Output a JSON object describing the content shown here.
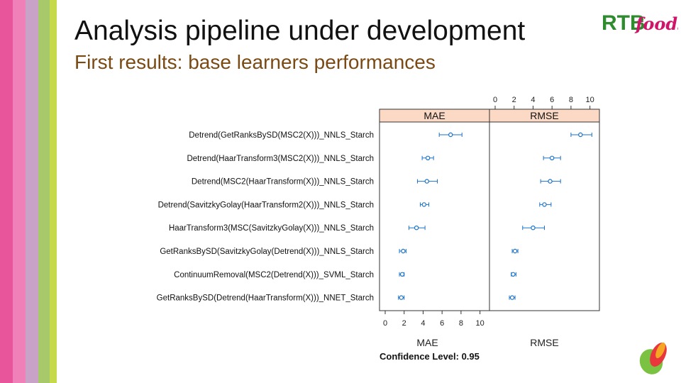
{
  "slide": {
    "title": "Analysis pipeline under development",
    "subtitle": "First results: base learners performances",
    "logo_text_left": "RTB",
    "logo_text_right": "foods"
  },
  "colors": {
    "stripes": [
      "#e8559a",
      "#f080b8",
      "#c9a3c7",
      "#a8c96a",
      "#c5d94a"
    ],
    "strip_fill": "#fcd9c4",
    "point": "#1a73c8",
    "panel_border": "#333333",
    "subtitle": "#7a4a14",
    "logo_green": "#2e8b2e",
    "logo_pink": "#d0146a"
  },
  "chart_data": {
    "type": "scatter",
    "panels": [
      "MAE",
      "RMSE"
    ],
    "x_ticks": [
      0,
      2,
      4,
      6,
      8,
      10
    ],
    "xlim": [
      0,
      11
    ],
    "top_axis_panel": "RMSE",
    "bottom_axis_panel": "MAE",
    "bottom_labels": [
      "MAE",
      "RMSE"
    ],
    "confidence_label": "Confidence Level: 0.95",
    "models": [
      {
        "name": "Detrend(GetRanksBySD(MSC2(X)))_NNLS_Starch",
        "mae": [
          5.7,
          6.9,
          8.1
        ],
        "rmse": [
          8.0,
          9.0,
          10.2
        ]
      },
      {
        "name": "Detrend(HaarTransform3(MSC2(X)))_NNLS_Starch",
        "mae": [
          3.9,
          4.5,
          5.1
        ],
        "rmse": [
          5.1,
          6.0,
          6.9
        ]
      },
      {
        "name": "Detrend(MSC2(HaarTransform(X)))_NNLS_Starch",
        "mae": [
          3.4,
          4.4,
          5.5
        ],
        "rmse": [
          4.8,
          5.8,
          6.9
        ]
      },
      {
        "name": "Detrend(SavitzkyGolay(HaarTransform2(X)))_NNLS_Starch",
        "mae": [
          3.7,
          4.1,
          4.6
        ],
        "rmse": [
          4.7,
          5.2,
          5.9
        ]
      },
      {
        "name": "HaarTransform3(MSC(SavitzkyGolay(X)))_NNLS_Starch",
        "mae": [
          2.5,
          3.3,
          4.2
        ],
        "rmse": [
          2.9,
          4.0,
          5.2
        ]
      },
      {
        "name": "GetRanksBySD(SavitzkyGolay(Detrend(X)))_NNLS_Starch",
        "mae": [
          1.5,
          1.9,
          2.2
        ],
        "rmse": [
          1.8,
          2.1,
          2.4
        ]
      },
      {
        "name": "ContinuumRemoval(MSC2(Detrend(X)))_SVML_Starch",
        "mae": [
          1.5,
          1.8,
          2.0
        ],
        "rmse": [
          1.7,
          1.9,
          2.2
        ]
      },
      {
        "name": "GetRanksBySD(Detrend(HaarTransform(X)))_NNET_Starch",
        "mae": [
          1.4,
          1.7,
          2.0
        ],
        "rmse": [
          1.5,
          1.8,
          2.1
        ]
      }
    ]
  }
}
